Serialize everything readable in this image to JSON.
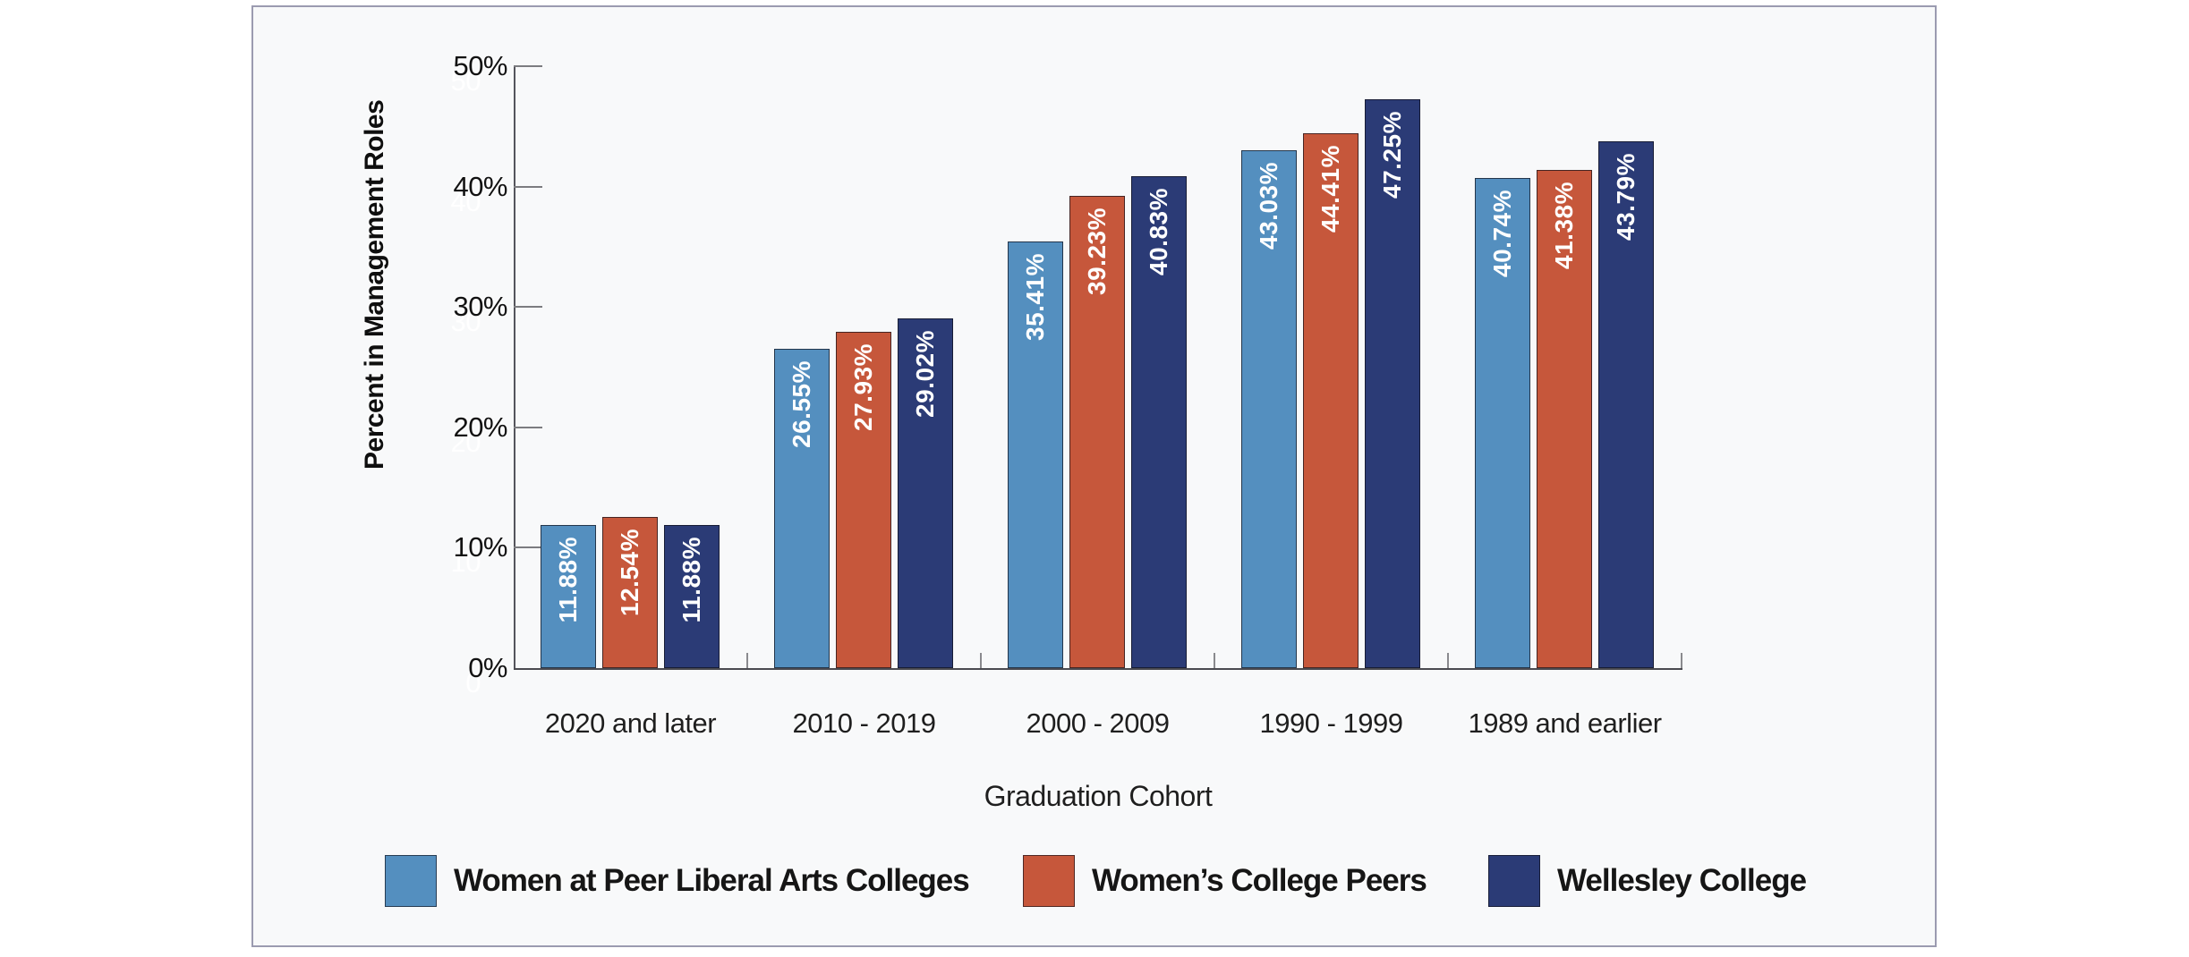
{
  "panel": {
    "background": "#F8F9FA",
    "border_color": "#9B9BB0",
    "outer_background": "#FFFFFF"
  },
  "chart_data": {
    "type": "bar",
    "title": "",
    "xlabel": "Graduation Cohort",
    "ylabel": "Percent in Management Roles",
    "categories": [
      "2020 and later",
      "2010 - 2019",
      "2000 - 2009",
      "1990 - 1999",
      "1989 and earlier"
    ],
    "series": [
      {
        "name": "Women at Peer Liberal Arts Colleges",
        "color": "#548FBF",
        "values": [
          11.88,
          26.55,
          35.41,
          43.03,
          40.74
        ],
        "labels": [
          "11.88%",
          "26.55%",
          "35.41%",
          "43.03%",
          "40.74%"
        ]
      },
      {
        "name": "Women’s College Peers",
        "color": "#C6573B",
        "values": [
          12.54,
          27.93,
          39.23,
          44.41,
          41.38
        ],
        "labels": [
          "12.54%",
          "27.93%",
          "39.23%",
          "44.41%",
          "41.38%"
        ]
      },
      {
        "name": "Wellesley College",
        "color": "#2B3B76",
        "values": [
          11.88,
          29.02,
          40.83,
          47.25,
          43.79
        ],
        "labels": [
          "11.88%",
          "29.02%",
          "40.83%",
          "47.25%",
          "43.79%"
        ]
      }
    ],
    "y_ticks": [
      {
        "label": "0%",
        "ghost": "0",
        "value": 0
      },
      {
        "label": "10%",
        "ghost": "10",
        "value": 10
      },
      {
        "label": "20%",
        "ghost": "20",
        "value": 20
      },
      {
        "label": "30%",
        "ghost": "30",
        "value": 30
      },
      {
        "label": "40%",
        "ghost": "40",
        "value": 40
      },
      {
        "label": "50%",
        "ghost": "50",
        "value": 50
      }
    ],
    "ylim": [
      0,
      50
    ],
    "grid": false,
    "legend_position": "bottom",
    "value_label_color": "#FFFFFF"
  }
}
